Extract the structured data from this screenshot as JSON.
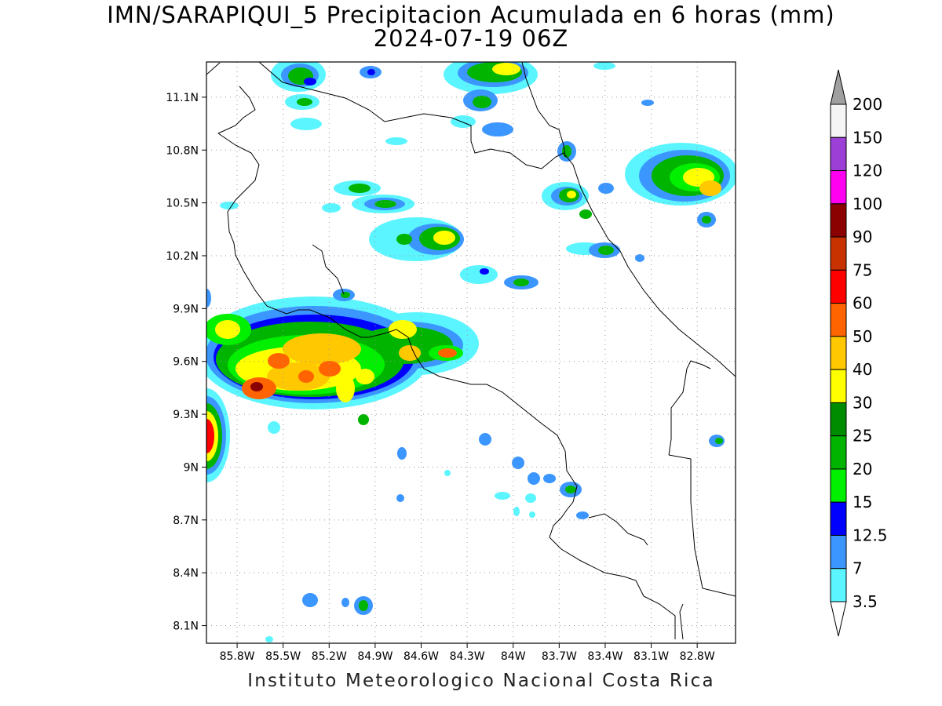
{
  "title": {
    "line1": "IMN/SARAPIQUI_5 Precipitacion Acumulada en 6 horas (mm)",
    "line2": "2024-07-19 06Z"
  },
  "credit": "Instituto Meteorologico Nacional Costa Rica",
  "map": {
    "lon_range": [
      -86.0,
      -82.55
    ],
    "lat_range": [
      8.0,
      11.3
    ],
    "lat_ticks": [
      {
        "v": 11.1,
        "label": "11.1N"
      },
      {
        "v": 10.8,
        "label": "10.8N"
      },
      {
        "v": 10.5,
        "label": "10.5N"
      },
      {
        "v": 10.2,
        "label": "10.2N"
      },
      {
        "v": 9.9,
        "label": "9.9N"
      },
      {
        "v": 9.6,
        "label": "9.6N"
      },
      {
        "v": 9.3,
        "label": "9.3N"
      },
      {
        "v": 9.0,
        "label": "9N"
      },
      {
        "v": 8.7,
        "label": "8.7N"
      },
      {
        "v": 8.4,
        "label": "8.4N"
      },
      {
        "v": 8.1,
        "label": "8.1N"
      }
    ],
    "lon_ticks": [
      {
        "v": -85.8,
        "label": "85.8W"
      },
      {
        "v": -85.5,
        "label": "85.5W"
      },
      {
        "v": -85.2,
        "label": "85.2W"
      },
      {
        "v": -84.9,
        "label": "84.9W"
      },
      {
        "v": -84.6,
        "label": "84.6W"
      },
      {
        "v": -84.3,
        "label": "84.3W"
      },
      {
        "v": -84.0,
        "label": "84W"
      },
      {
        "v": -83.7,
        "label": "83.7W"
      },
      {
        "v": -83.4,
        "label": "83.4W"
      },
      {
        "v": -83.1,
        "label": "83.1W"
      },
      {
        "v": -82.8,
        "label": "82.8W"
      }
    ]
  },
  "colorbar": {
    "levels": [
      {
        "label": "200",
        "color": "#f5f5f5"
      },
      {
        "label": "150",
        "color": "#9c3fd6"
      },
      {
        "label": "120",
        "color": "#ff00f0"
      },
      {
        "label": "100",
        "color": "#8b0000"
      },
      {
        "label": "90",
        "color": "#c83200"
      },
      {
        "label": "75",
        "color": "#ff0000"
      },
      {
        "label": "60",
        "color": "#ff6400"
      },
      {
        "label": "50",
        "color": "#ffc800"
      },
      {
        "label": "40",
        "color": "#ffff00"
      },
      {
        "label": "30",
        "color": "#008c00"
      },
      {
        "label": "25",
        "color": "#00b400"
      },
      {
        "label": "20",
        "color": "#00f000"
      },
      {
        "label": "15",
        "color": "#0000ff"
      },
      {
        "label": "12.5",
        "color": "#3c96ff"
      },
      {
        "label": "7",
        "color": "#5af5ff"
      },
      {
        "label": "3.5",
        "color": "#ffffff"
      }
    ],
    "top_triangle_color": "#a0a0a0",
    "bottom_triangle_color": "#ffffff"
  },
  "precip_colors": {
    "cyan": "#5af5ff",
    "lightblue": "#3c96ff",
    "blue": "#0000ff",
    "lightgreen": "#00f000",
    "green": "#00b400",
    "darkgreen": "#008c00",
    "yellow": "#ffff00",
    "gold": "#ffc800",
    "orange": "#ff6400",
    "red": "#ff0000"
  }
}
